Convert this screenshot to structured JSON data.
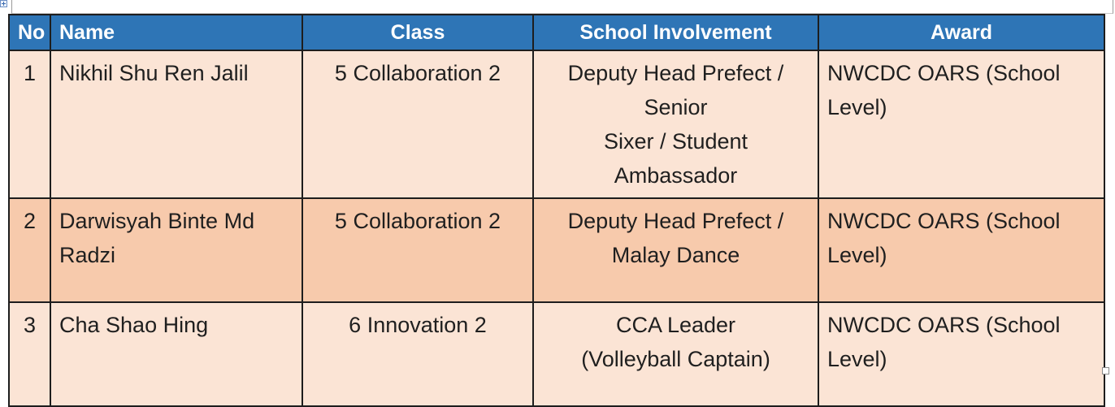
{
  "table": {
    "headers": {
      "no": "No",
      "name": "Name",
      "class": "Class",
      "involvement": "School Involvement",
      "award": "Award"
    },
    "rows": [
      {
        "no": "1",
        "name": "Nikhil Shu Ren Jalil",
        "class": "5 Collaboration 2",
        "involvement_lines": [
          "Deputy Head Prefect  / Senior",
          "Sixer / Student Ambassador"
        ],
        "award": "NWCDC  OARS (School Level)"
      },
      {
        "no": "2",
        "name": "Darwisyah Binte Md Radzi",
        "class": "5 Collaboration 2",
        "involvement_lines": [
          "Deputy Head Prefect  /",
          "Malay Dance"
        ],
        "award": "NWCDC  OARS (School Level)"
      },
      {
        "no": "3",
        "name": "Cha Shao Hing",
        "class": "6 Innovation 2",
        "involvement_lines": [
          "CCA Leader",
          "(Volleyball Captain)"
        ],
        "award": "NWCDC  OARS (School Level)"
      }
    ]
  },
  "colors": {
    "header_bg": "#2e75b6",
    "header_text": "#ffffff",
    "row_light": "#fbe4d5",
    "row_dark": "#f7caac",
    "border": "#1d1d1d"
  },
  "icons": {
    "table_move": "move-handle-icon",
    "table_resize": "resize-handle-icon"
  }
}
